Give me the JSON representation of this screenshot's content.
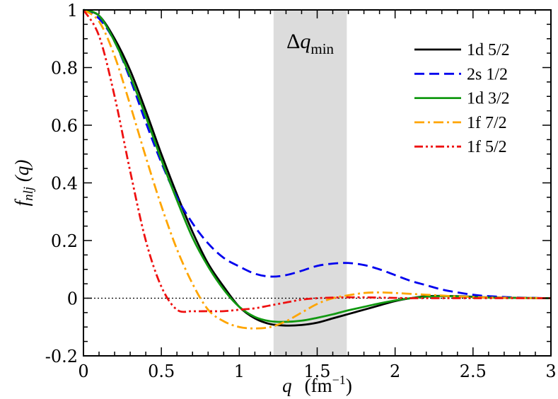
{
  "chart_data": {
    "type": "line",
    "xlabel_var": "q",
    "xlabel_unit_base": "(fm",
    "xlabel_unit_exp": "−1",
    "xlabel_unit_close": ")",
    "ylabel_base": "f",
    "ylabel_sub": "nlj",
    "ylabel_arg": " (q)",
    "xlim": [
      0,
      3
    ],
    "ylim": [
      -0.2,
      1.0
    ],
    "xticks": [
      0,
      0.5,
      1,
      1.5,
      2,
      2.5,
      3
    ],
    "xtick_labels": [
      "0",
      "0.5",
      "1",
      "1.5",
      "2",
      "2.5",
      "3"
    ],
    "yticks": [
      -0.2,
      0,
      0.2,
      0.4,
      0.6,
      0.8,
      1.0
    ],
    "ytick_labels": [
      "-0.2",
      "0",
      "0.2",
      "0.4",
      "0.6",
      "0.8",
      "1"
    ],
    "band": {
      "x0": 1.22,
      "x1": 1.69,
      "color": "#dcdcdc",
      "label_delta": "Δ",
      "label_var": "q",
      "label_sub": "min"
    },
    "zero_line": true,
    "legend_position": "top-right",
    "series": [
      {
        "name": "1d 5/2",
        "color": "#000000",
        "dash": "solid",
        "x": [
          0,
          0.1,
          0.2,
          0.3,
          0.4,
          0.5,
          0.6,
          0.7,
          0.8,
          0.9,
          1.0,
          1.1,
          1.2,
          1.3,
          1.4,
          1.5,
          1.6,
          1.7,
          1.8,
          1.9,
          2.0,
          2.1,
          2.2,
          2.3,
          2.4,
          2.5,
          2.6,
          2.8,
          3.0
        ],
        "y": [
          1.0,
          0.98,
          0.9,
          0.79,
          0.65,
          0.5,
          0.36,
          0.23,
          0.12,
          0.04,
          -0.03,
          -0.07,
          -0.09,
          -0.095,
          -0.093,
          -0.085,
          -0.07,
          -0.055,
          -0.04,
          -0.025,
          -0.01,
          0.0,
          0.007,
          0.008,
          0.007,
          0.005,
          0.003,
          0.001,
          0.0
        ]
      },
      {
        "name": "2s 1/2",
        "color": "#0000ee",
        "dash": "dashed",
        "x": [
          0,
          0.1,
          0.2,
          0.3,
          0.4,
          0.5,
          0.6,
          0.7,
          0.8,
          0.9,
          1.0,
          1.1,
          1.2,
          1.3,
          1.4,
          1.5,
          1.6,
          1.7,
          1.8,
          1.9,
          2.0,
          2.1,
          2.2,
          2.3,
          2.4,
          2.5,
          2.6,
          2.8,
          3.0
        ],
        "y": [
          1.0,
          0.97,
          0.89,
          0.76,
          0.61,
          0.47,
          0.35,
          0.26,
          0.19,
          0.14,
          0.11,
          0.085,
          0.075,
          0.08,
          0.095,
          0.112,
          0.12,
          0.122,
          0.115,
          0.1,
          0.08,
          0.06,
          0.045,
          0.03,
          0.02,
          0.012,
          0.007,
          0.002,
          0.0
        ]
      },
      {
        "name": "1d 3/2",
        "color": "#119911",
        "dash": "solid",
        "x": [
          0,
          0.1,
          0.2,
          0.3,
          0.4,
          0.5,
          0.6,
          0.7,
          0.8,
          0.9,
          1.0,
          1.1,
          1.2,
          1.3,
          1.4,
          1.5,
          1.6,
          1.7,
          1.8,
          1.9,
          2.0,
          2.1,
          2.2,
          2.3,
          2.4,
          2.5,
          2.6,
          2.8,
          3.0
        ],
        "y": [
          1.0,
          0.98,
          0.89,
          0.77,
          0.63,
          0.48,
          0.34,
          0.21,
          0.11,
          0.03,
          -0.03,
          -0.065,
          -0.08,
          -0.082,
          -0.078,
          -0.068,
          -0.056,
          -0.042,
          -0.03,
          -0.018,
          -0.008,
          0.0,
          0.005,
          0.007,
          0.006,
          0.004,
          0.002,
          0.001,
          0.0
        ]
      },
      {
        "name": "1f 7/2",
        "color": "#ffa500",
        "dash": "dashdot",
        "x": [
          0,
          0.1,
          0.2,
          0.3,
          0.4,
          0.5,
          0.6,
          0.7,
          0.8,
          0.9,
          1.0,
          1.1,
          1.2,
          1.3,
          1.4,
          1.5,
          1.6,
          1.7,
          1.8,
          1.9,
          2.0,
          2.1,
          2.2,
          2.3,
          2.4,
          2.5,
          2.6,
          2.8,
          3.0
        ],
        "y": [
          1.0,
          0.96,
          0.84,
          0.67,
          0.49,
          0.32,
          0.17,
          0.05,
          -0.04,
          -0.08,
          -0.1,
          -0.105,
          -0.1,
          -0.08,
          -0.05,
          -0.02,
          0.0,
          0.01,
          0.018,
          0.02,
          0.018,
          0.015,
          0.012,
          0.009,
          0.006,
          0.004,
          0.002,
          0.001,
          0.0
        ]
      },
      {
        "name": "1f 5/2",
        "color": "#ee1111",
        "dash": "dashdotdot",
        "x": [
          0,
          0.1,
          0.2,
          0.3,
          0.4,
          0.5,
          0.6,
          0.7,
          0.8,
          0.9,
          1.0,
          1.1,
          1.2,
          1.3,
          1.4,
          1.5,
          1.6,
          1.7,
          1.8,
          1.9,
          2.0,
          2.1,
          2.2,
          2.3,
          2.4,
          2.5,
          2.6,
          2.8,
          3.0
        ],
        "y": [
          1.0,
          0.91,
          0.7,
          0.44,
          0.2,
          0.04,
          -0.04,
          -0.045,
          -0.045,
          -0.045,
          -0.04,
          -0.035,
          -0.025,
          -0.015,
          -0.005,
          0.0,
          0.002,
          0.003,
          0.003,
          0.002,
          0.001,
          0.0,
          0.0,
          0.0,
          0.0,
          0.0,
          0.0,
          0.0,
          0.0
        ]
      }
    ]
  }
}
